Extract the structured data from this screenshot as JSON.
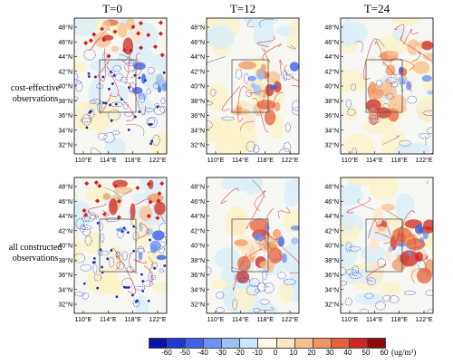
{
  "columns": [
    {
      "title": "T=0"
    },
    {
      "title": "T=12"
    },
    {
      "title": "T=24"
    }
  ],
  "rows": [
    {
      "label_line1": "cost-effective",
      "label_line2": "observations"
    },
    {
      "label_line1": "all constructed",
      "label_line2": "observations"
    }
  ],
  "lat_ticks": [
    "32°N",
    "34°N",
    "36°N",
    "38°N",
    "40°N",
    "42°N",
    "44°N",
    "46°N",
    "48°N"
  ],
  "lon_ticks": [
    "110°E",
    "114°E",
    "118°E",
    "122°E"
  ],
  "colorbar": {
    "ticks": [
      "-60",
      "-50",
      "-40",
      "-30",
      "-20",
      "-10",
      "0",
      "10",
      "20",
      "30",
      "40",
      "50",
      "60"
    ],
    "unit": "(ug/m³)",
    "colors": [
      "#0a13a8",
      "#1f3ad0",
      "#3c63e6",
      "#6b93f2",
      "#9cc0f7",
      "#cfe6f9",
      "#fffbe8",
      "#fde6c3",
      "#f7c08d",
      "#f09561",
      "#e6603a",
      "#cc2a20",
      "#8e0a0a"
    ]
  }
}
